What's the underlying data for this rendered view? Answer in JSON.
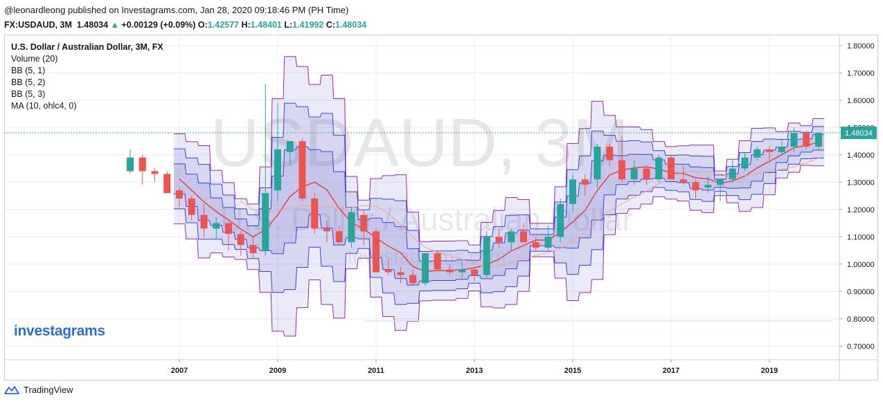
{
  "header": {
    "published": "@leonardleong published on Investagrams.com, Jan 28, 2020 09:18:46 PM (PH Time)",
    "symbol": "FX:USDAUD, 3M",
    "last": "1.48034",
    "up_arrow": "▲",
    "change": "+0.00129 (+0.09%)",
    "o_label": "O:",
    "o": "1.42577",
    "h_label": "H:",
    "h": "1.48401",
    "l_label": "L:",
    "l": "1.41992",
    "c_label": "C:",
    "c": "1.48034"
  },
  "legend": {
    "title": "U.S. Dollar / Australian Dollar, 3M, FX",
    "items": [
      "Volume (20)",
      "BB (5, 1)",
      "BB (5, 2)",
      "BB (5, 3)",
      "MA (10, ohlc4, 0)"
    ]
  },
  "watermark": {
    "big": "USDAUD, 3M",
    "sub": "U.S. Dollar / Australian Dollar",
    "site": "Investagrams.com"
  },
  "brand": "investagrams",
  "footer": {
    "label": "TradingView",
    "icon": "tradingview-logo-icon"
  },
  "colors": {
    "up": "#26a69a",
    "down": "#ef5350",
    "ma": "#e53935",
    "bb_line": "#3f3fdc",
    "bb_outer": "#9c27b0",
    "bb_fill": "#5050c8",
    "price_line": "#26a69a",
    "grid": "#e9ecf2",
    "brand": "#2a6fd6"
  },
  "chart_data": {
    "type": "candlestick",
    "title": "U.S. Dollar / Australian Dollar, 3M, FX",
    "y_ticks": [
      "1.80000",
      "1.70000",
      "1.60000",
      "1.50000",
      "1.40000",
      "1.30000",
      "1.20000",
      "1.10000",
      "1.00000",
      "0.90000",
      "0.80000",
      "0.70000"
    ],
    "x_ticks": [
      "2007",
      "2009",
      "2011",
      "2013",
      "2015",
      "2017",
      "2019"
    ],
    "ylim": [
      0.65,
      1.84
    ],
    "last_price": 1.48034,
    "last_price_label": "1.48034",
    "candles": [
      [
        2006.0,
        1.34,
        1.42,
        1.33,
        1.39
      ],
      [
        2006.25,
        1.39,
        1.4,
        1.29,
        1.34
      ],
      [
        2006.5,
        1.34,
        1.35,
        1.3,
        1.33
      ],
      [
        2006.75,
        1.33,
        1.34,
        1.26,
        1.26
      ],
      [
        2007.0,
        1.27,
        1.28,
        1.21,
        1.24
      ],
      [
        2007.25,
        1.24,
        1.25,
        1.16,
        1.18
      ],
      [
        2007.5,
        1.18,
        1.22,
        1.1,
        1.13
      ],
      [
        2007.75,
        1.13,
        1.17,
        1.09,
        1.15
      ],
      [
        2008.0,
        1.15,
        1.16,
        1.05,
        1.11
      ],
      [
        2008.25,
        1.11,
        1.12,
        1.03,
        1.07
      ],
      [
        2008.5,
        1.07,
        1.1,
        1.02,
        1.04
      ],
      [
        2008.75,
        1.05,
        1.66,
        1.03,
        1.26
      ],
      [
        2009.0,
        1.27,
        1.59,
        1.23,
        1.42
      ],
      [
        2009.25,
        1.41,
        1.44,
        1.36,
        1.45
      ],
      [
        2009.5,
        1.45,
        1.46,
        1.23,
        1.24
      ],
      [
        2009.75,
        1.24,
        1.26,
        1.11,
        1.13
      ],
      [
        2010.0,
        1.13,
        1.16,
        1.08,
        1.12
      ],
      [
        2010.25,
        1.12,
        1.14,
        1.07,
        1.08
      ],
      [
        2010.5,
        1.08,
        1.21,
        1.06,
        1.19
      ],
      [
        2010.75,
        1.18,
        1.2,
        1.07,
        1.12
      ],
      [
        2011.0,
        1.12,
        1.13,
        0.97,
        0.97
      ],
      [
        2011.25,
        0.98,
        1.02,
        0.96,
        0.97
      ],
      [
        2011.5,
        0.97,
        0.99,
        0.93,
        0.96
      ],
      [
        2011.75,
        0.96,
        0.98,
        0.92,
        0.93
      ],
      [
        2012.0,
        0.93,
        1.04,
        0.92,
        1.04
      ],
      [
        2012.25,
        1.04,
        1.05,
        0.98,
        0.98
      ],
      [
        2012.5,
        0.98,
        1.0,
        0.96,
        0.97
      ],
      [
        2012.75,
        0.97,
        1.01,
        0.95,
        0.98
      ],
      [
        2013.0,
        0.98,
        0.99,
        0.94,
        0.96
      ],
      [
        2013.25,
        0.96,
        1.12,
        0.95,
        1.1
      ],
      [
        2013.5,
        1.1,
        1.13,
        1.06,
        1.08
      ],
      [
        2013.75,
        1.08,
        1.13,
        1.05,
        1.12
      ],
      [
        2014.0,
        1.12,
        1.15,
        1.08,
        1.08
      ],
      [
        2014.25,
        1.08,
        1.1,
        1.05,
        1.06
      ],
      [
        2014.5,
        1.06,
        1.14,
        1.05,
        1.1
      ],
      [
        2014.75,
        1.1,
        1.24,
        1.08,
        1.22
      ],
      [
        2015.0,
        1.22,
        1.33,
        1.19,
        1.31
      ],
      [
        2015.25,
        1.31,
        1.33,
        1.25,
        1.29
      ],
      [
        2015.5,
        1.31,
        1.44,
        1.28,
        1.43
      ],
      [
        2015.75,
        1.43,
        1.44,
        1.36,
        1.38
      ],
      [
        2016.0,
        1.38,
        1.47,
        1.3,
        1.31
      ],
      [
        2016.25,
        1.31,
        1.38,
        1.29,
        1.35
      ],
      [
        2016.5,
        1.35,
        1.36,
        1.29,
        1.31
      ],
      [
        2016.75,
        1.31,
        1.4,
        1.3,
        1.39
      ],
      [
        2017.0,
        1.39,
        1.4,
        1.31,
        1.31
      ],
      [
        2017.25,
        1.31,
        1.36,
        1.29,
        1.3
      ],
      [
        2017.5,
        1.3,
        1.31,
        1.24,
        1.27
      ],
      [
        2017.75,
        1.28,
        1.32,
        1.26,
        1.29
      ],
      [
        2018.0,
        1.29,
        1.31,
        1.23,
        1.31
      ],
      [
        2018.25,
        1.31,
        1.38,
        1.3,
        1.35
      ],
      [
        2018.5,
        1.35,
        1.41,
        1.34,
        1.39
      ],
      [
        2018.75,
        1.39,
        1.43,
        1.38,
        1.42
      ],
      [
        2019.0,
        1.42,
        1.43,
        1.38,
        1.41
      ],
      [
        2019.25,
        1.41,
        1.46,
        1.4,
        1.43
      ],
      [
        2019.5,
        1.43,
        1.5,
        1.41,
        1.48
      ],
      [
        2019.75,
        1.48,
        1.49,
        1.42,
        1.43
      ],
      [
        2020.0,
        1.43,
        1.48401,
        1.41992,
        1.48034
      ]
    ]
  }
}
